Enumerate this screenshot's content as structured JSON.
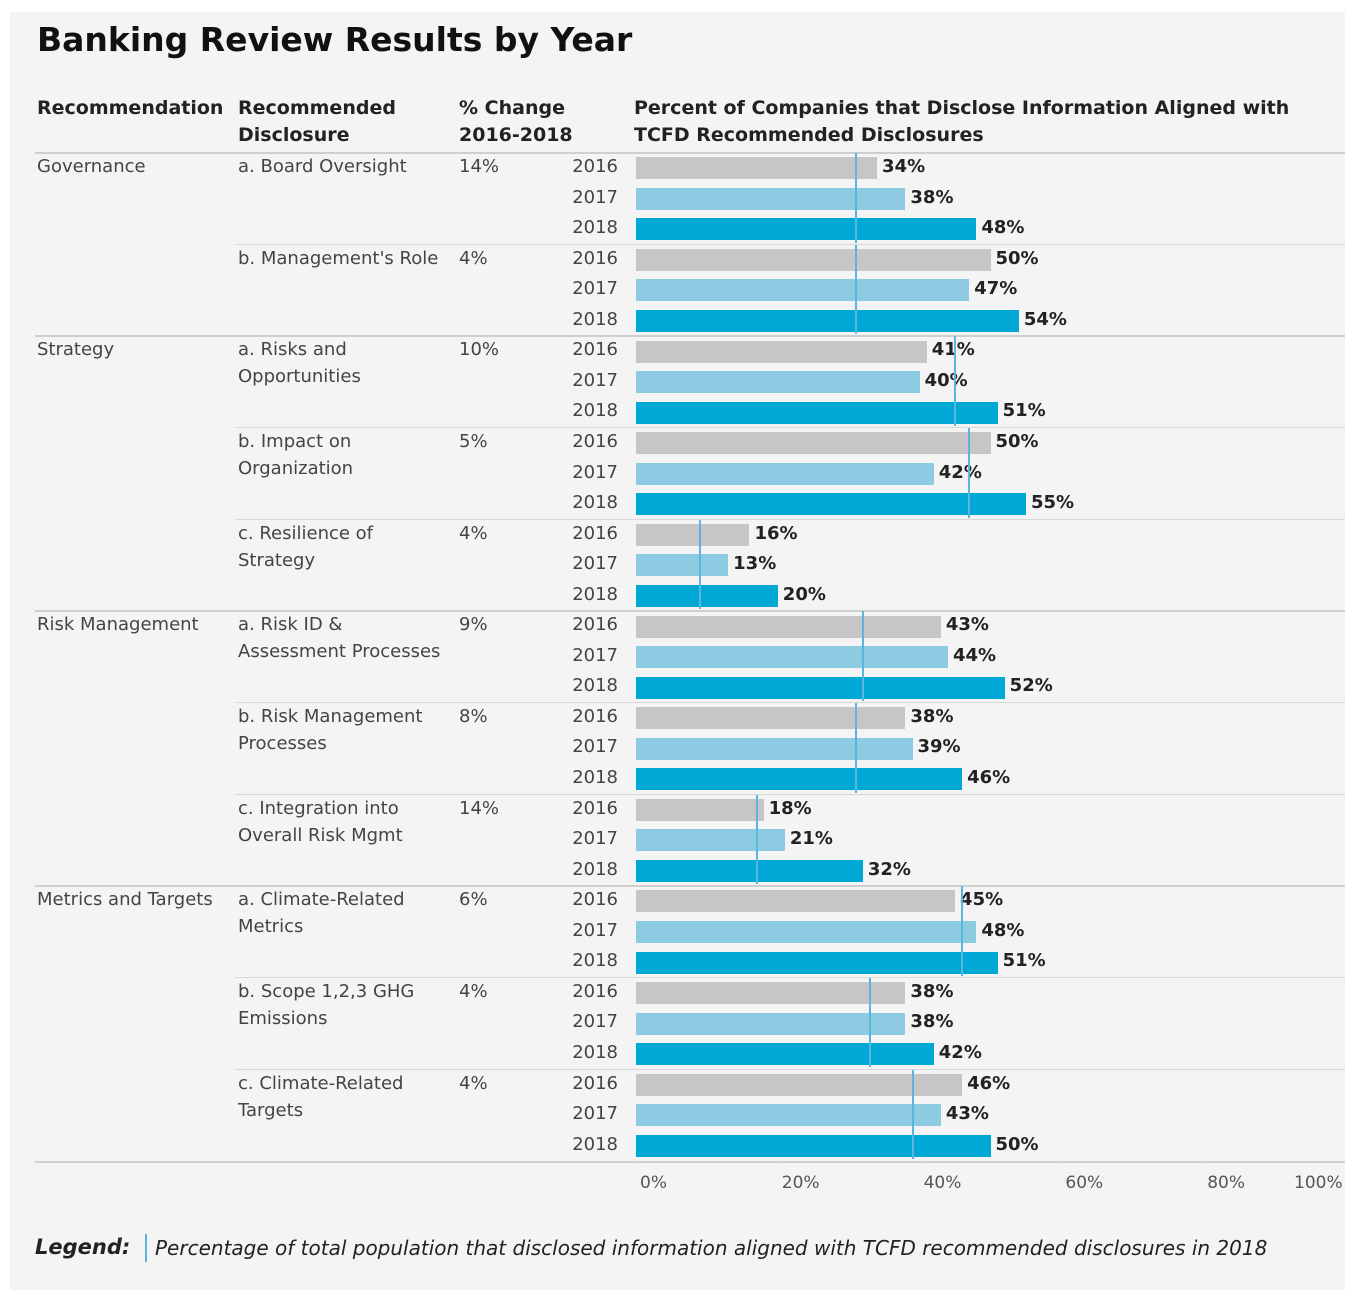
{
  "title": "Banking Review Results by Year",
  "columns": [
    "Recommendation",
    "Recommended Disclosure",
    "% Change 2016-2018",
    "Percent of Companies that Disclose Information Aligned with TCFD Recommended Disclosures"
  ],
  "years": [
    {
      "name": "2016",
      "color": "#c6c6c6"
    },
    {
      "name": "2017",
      "color": "#8dcbe2"
    },
    {
      "name": "2018",
      "color": "#00a8d6"
    }
  ],
  "xlim": [
    0,
    100
  ],
  "xticks": [
    {
      "value": 0,
      "label": "0%"
    },
    {
      "value": 20,
      "label": "20%"
    },
    {
      "value": 40,
      "label": "40%"
    },
    {
      "value": 60,
      "label": "60%"
    },
    {
      "value": 80,
      "label": "80%"
    },
    {
      "value": 100,
      "label": "100%"
    }
  ],
  "reference_color": "#5ab6dc",
  "groups": [
    {
      "recommendation": "Governance",
      "disclosures": [
        {
          "name": "a. Board Oversight",
          "change": "14%",
          "values": [
            34,
            38,
            48
          ],
          "value_labels": [
            "34%",
            "38%",
            "48%"
          ],
          "reference": 31
        },
        {
          "name": "b. Management's Role",
          "change": "4%",
          "values": [
            50,
            47,
            54
          ],
          "value_labels": [
            "50%",
            "47%",
            "54%"
          ],
          "reference": 31
        }
      ]
    },
    {
      "recommendation": "Strategy",
      "disclosures": [
        {
          "name": "a. Risks and Opportunities",
          "change": "10%",
          "values": [
            41,
            40,
            51
          ],
          "value_labels": [
            "41%",
            "40%",
            "51%"
          ],
          "reference": 45
        },
        {
          "name": "b. Impact on Organization",
          "change": "5%",
          "values": [
            50,
            42,
            55
          ],
          "value_labels": [
            "50%",
            "42%",
            "55%"
          ],
          "reference": 47
        },
        {
          "name": "c. Resilience of Strategy",
          "change": "4%",
          "values": [
            16,
            13,
            20
          ],
          "value_labels": [
            "16%",
            "13%",
            "20%"
          ],
          "reference": 9
        }
      ]
    },
    {
      "recommendation": "Risk Management",
      "disclosures": [
        {
          "name": "a. Risk ID & Assessment Processes",
          "change": "9%",
          "values": [
            43,
            44,
            52
          ],
          "value_labels": [
            "43%",
            "44%",
            "52%"
          ],
          "reference": 32
        },
        {
          "name": "b. Risk Management Processes",
          "change": "8%",
          "values": [
            38,
            39,
            46
          ],
          "value_labels": [
            "38%",
            "39%",
            "46%"
          ],
          "reference": 31
        },
        {
          "name": "c. Integration into Overall Risk Mgmt",
          "change": "14%",
          "values": [
            18,
            21,
            32
          ],
          "value_labels": [
            "18%",
            "21%",
            "32%"
          ],
          "reference": 17
        }
      ]
    },
    {
      "recommendation": "Metrics and Targets",
      "disclosures": [
        {
          "name": "a. Climate-Related Metrics",
          "change": "6%",
          "values": [
            45,
            48,
            51
          ],
          "value_labels": [
            "45%",
            "48%",
            "51%"
          ],
          "reference": 46
        },
        {
          "name": "b. Scope 1,2,3 GHG Emissions",
          "change": "4%",
          "values": [
            38,
            38,
            42
          ],
          "value_labels": [
            "38%",
            "38%",
            "42%"
          ],
          "reference": 33
        },
        {
          "name": "c. Climate-Related Targets",
          "change": "4%",
          "values": [
            46,
            43,
            50
          ],
          "value_labels": [
            "46%",
            "43%",
            "50%"
          ],
          "reference": 39
        }
      ]
    }
  ],
  "legend": {
    "label": "Legend:",
    "text": "Percentage of total population that disclosed information aligned with TCFD recommended disclosures in 2018"
  }
}
